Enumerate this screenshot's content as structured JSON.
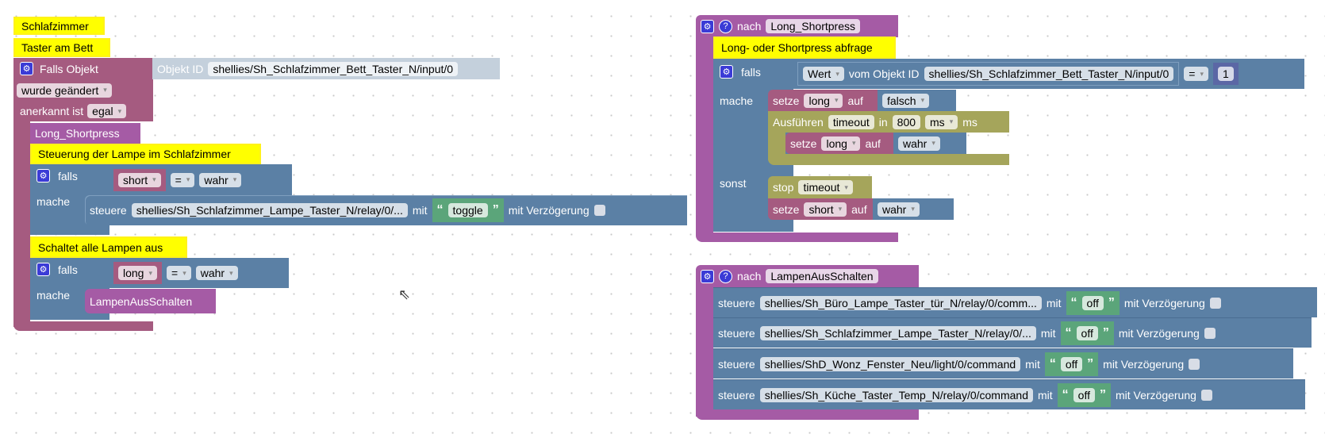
{
  "left": {
    "comment1": "Schlafzimmer",
    "comment2": "Taster am Bett",
    "trigger": {
      "label": "Falls Objekt",
      "object_id_label": "Objekt ID",
      "object_id": "shellies/Sh_Schlafzimmer_Bett_Taster_N/input/0",
      "change": "wurde geändert",
      "ack_label": "anerkannt ist",
      "ack": "egal"
    },
    "call1": "Long_Shortpress",
    "comment3": "Steuerung der Lampe im Schlafzimmer",
    "if1": {
      "falls": "falls",
      "var": "short",
      "op": "=",
      "val": "wahr",
      "mache": "mache",
      "steuere": "steuere",
      "target": "shellies/Sh_Schlafzimmer_Lampe_Taster_N/relay/0/...",
      "mit": "mit",
      "text": "toggle",
      "delay": "mit Verzögerung"
    },
    "comment4": "Schaltet alle Lampen aus",
    "if2": {
      "falls": "falls",
      "var": "long",
      "op": "=",
      "val": "wahr",
      "mache": "mache",
      "call": "LampenAusSchalten"
    }
  },
  "func1": {
    "nach": "nach",
    "name": "Long_Shortpress",
    "comment": "Long- oder Shortpress abfrage",
    "falls": "falls",
    "wert": "Wert",
    "vom": "vom Objekt ID",
    "object_id": "shellies/Sh_Schlafzimmer_Bett_Taster_N/input/0",
    "op": "=",
    "num": "1",
    "mache": "mache",
    "setze": "setze",
    "auf": "auf",
    "var_long": "long",
    "falsch": "falsch",
    "ausfuehren": "Ausführen",
    "timeout": "timeout",
    "in": "in",
    "ms_val": "800",
    "ms_unit": "ms",
    "ms": "ms",
    "wahr": "wahr",
    "sonst": "sonst",
    "stop": "stop",
    "var_short": "short"
  },
  "func2": {
    "nach": "nach",
    "name": "LampenAusSchalten",
    "steuere": "steuere",
    "mit": "mit",
    "text": "off",
    "delay": "mit Verzögerung",
    "rows": [
      "shellies/Sh_Büro_Lampe_Taster_tür_N/relay/0/comm...",
      "shellies/Sh_Schlafzimmer_Lampe_Taster_N/relay/0/...",
      "shellies/ShD_Wonz_Fenster_Neu/light/0/command",
      "shellies/Sh_Küche_Taster_Temp_N/relay/0/command"
    ]
  },
  "icons": {
    "gear": "gear-icon",
    "help": "help-icon",
    "quote": "quote-icon",
    "cursor": "mouse-cursor-icon"
  }
}
